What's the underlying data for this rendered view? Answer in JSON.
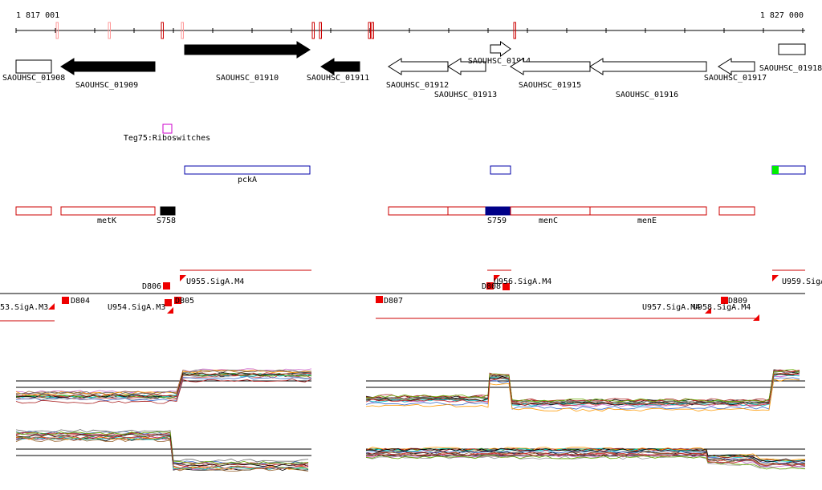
{
  "ruler": {
    "start": "1 817 001",
    "end": "1 827 000"
  },
  "genes": [
    "SAOUHSC_01908",
    "SAOUHSC_01909",
    "SAOUHSC_01910",
    "SAOUHSC_01911",
    "SAOUHSC_01912",
    "SAOUHSC_01913",
    "SAOUHSC_01914",
    "SAOUHSC_01915",
    "SAOUHSC_01916",
    "SAOUHSC_01917",
    "SAOUHSC_01918"
  ],
  "rfam": [
    "Teg75:Riboswitches"
  ],
  "operons": [
    "pckA"
  ],
  "features": [
    "metK",
    "S758",
    "S759",
    "menC",
    "menE"
  ],
  "sites": [
    "D806",
    "U955.SigA.M4",
    "D808",
    "U956.SigA.M4",
    "U959.SigA",
    "53.SigA.M3",
    "D804",
    "U954.SigA.M3",
    "D805",
    "D807",
    "U957.SigA.M4",
    "U958.SigA.M4",
    "D809"
  ]
}
